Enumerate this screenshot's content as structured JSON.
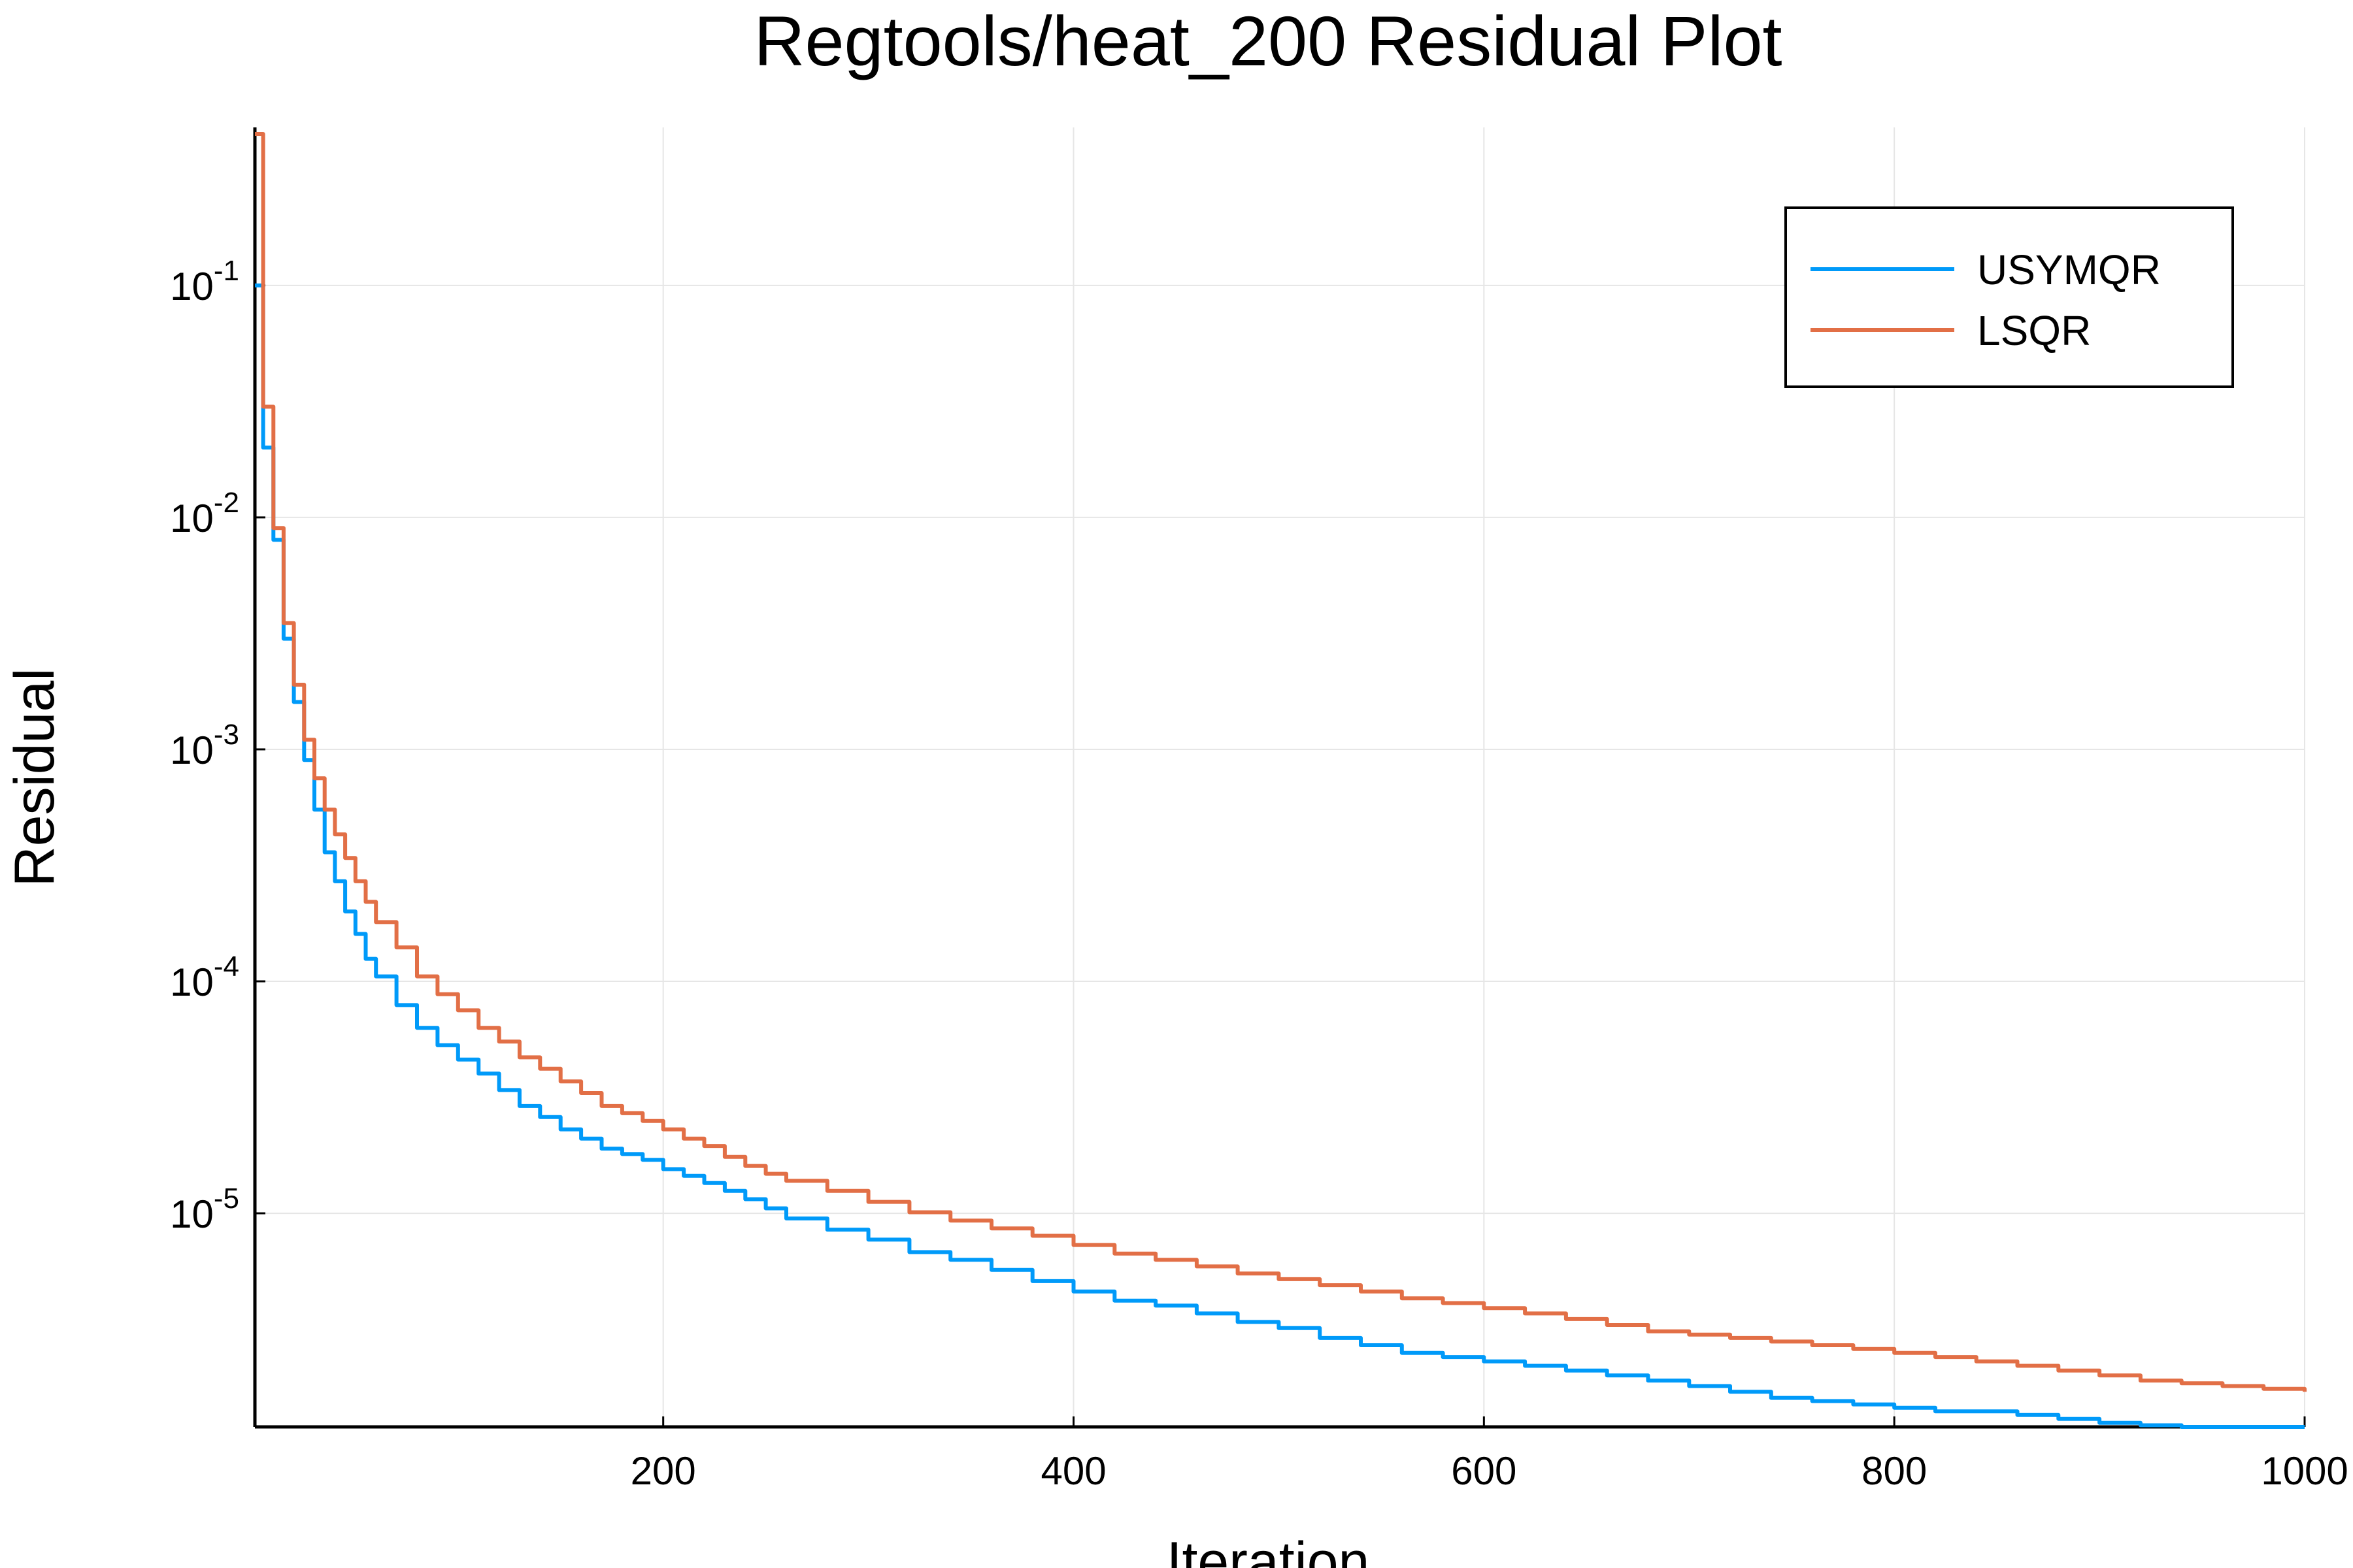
{
  "chart_data": {
    "type": "line",
    "title": "Regtools/heat_200 Residual Plot",
    "xlabel": "Iteration",
    "ylabel": "Residual",
    "xscale": "linear",
    "yscale": "log",
    "xlim": [
      1,
      1000
    ],
    "ylim": [
      1.2e-06,
      0.48
    ],
    "xticks": [
      200,
      400,
      600,
      800,
      1000
    ],
    "yticks": [
      {
        "value": 0.1,
        "base": "10",
        "exp": "-1"
      },
      {
        "value": 0.01,
        "base": "10",
        "exp": "-2"
      },
      {
        "value": 0.001,
        "base": "10",
        "exp": "-3"
      },
      {
        "value": 0.0001,
        "base": "10",
        "exp": "-4"
      },
      {
        "value": 1e-05,
        "base": "10",
        "exp": "-5"
      }
    ],
    "grid": true,
    "legend_position": "top-right",
    "series": [
      {
        "name": "USYMQR",
        "color": "#009af9",
        "x": [
          1,
          5,
          10,
          15,
          20,
          25,
          30,
          35,
          40,
          45,
          50,
          55,
          60,
          70,
          80,
          90,
          100,
          110,
          120,
          130,
          140,
          150,
          160,
          170,
          180,
          190,
          200,
          210,
          220,
          230,
          240,
          250,
          260,
          280,
          300,
          320,
          340,
          360,
          380,
          400,
          420,
          440,
          460,
          480,
          500,
          520,
          540,
          560,
          580,
          600,
          620,
          640,
          660,
          680,
          700,
          720,
          740,
          760,
          780,
          800,
          820,
          840,
          860,
          880,
          900,
          920,
          940,
          960,
          980,
          1000
        ],
        "y": [
          0.1,
          0.02,
          0.008,
          0.003,
          0.0016,
          0.0009,
          0.00055,
          0.00036,
          0.00027,
          0.0002,
          0.00016,
          0.000125,
          0.000105,
          7.9e-05,
          6.3e-05,
          5.3e-05,
          4.6e-05,
          4e-05,
          3.4e-05,
          2.9e-05,
          2.6e-05,
          2.3e-05,
          2.1e-05,
          1.9e-05,
          1.8e-05,
          1.7e-05,
          1.55e-05,
          1.45e-05,
          1.35e-05,
          1.25e-05,
          1.15e-05,
          1.05e-05,
          9.5e-06,
          8.5e-06,
          7.7e-06,
          6.8e-06,
          6.3e-06,
          5.7e-06,
          5.1e-06,
          4.6e-06,
          4.2e-06,
          4e-06,
          3.7e-06,
          3.4e-06,
          3.2e-06,
          2.9e-06,
          2.7e-06,
          2.5e-06,
          2.4e-06,
          2.3e-06,
          2.2e-06,
          2.1e-06,
          2e-06,
          1.9e-06,
          1.8e-06,
          1.7e-06,
          1.6e-06,
          1.55e-06,
          1.5e-06,
          1.45e-06,
          1.4e-06,
          1.4e-06,
          1.35e-06,
          1.3e-06,
          1.25e-06,
          1.22e-06,
          1.2e-06,
          1.2e-06,
          1.2e-06,
          1.2e-06
        ]
      },
      {
        "name": "LSQR",
        "color": "#e26f46",
        "x": [
          1,
          5,
          10,
          15,
          20,
          25,
          30,
          35,
          40,
          45,
          50,
          55,
          60,
          70,
          80,
          90,
          100,
          110,
          120,
          130,
          140,
          150,
          160,
          170,
          180,
          190,
          200,
          210,
          220,
          230,
          240,
          250,
          260,
          280,
          300,
          320,
          340,
          360,
          380,
          400,
          420,
          440,
          460,
          480,
          500,
          520,
          540,
          560,
          580,
          600,
          620,
          640,
          660,
          680,
          700,
          720,
          740,
          760,
          780,
          800,
          820,
          840,
          860,
          880,
          900,
          920,
          940,
          960,
          980,
          1000
        ],
        "y": [
          0.45,
          0.03,
          0.009,
          0.0035,
          0.0019,
          0.0011,
          0.00075,
          0.00055,
          0.00043,
          0.00034,
          0.00027,
          0.00022,
          0.00018,
          0.00014,
          0.000105,
          8.8e-05,
          7.5e-05,
          6.3e-05,
          5.5e-05,
          4.7e-05,
          4.2e-05,
          3.7e-05,
          3.3e-05,
          2.9e-05,
          2.7e-05,
          2.5e-05,
          2.3e-05,
          2.1e-05,
          1.95e-05,
          1.75e-05,
          1.6e-05,
          1.48e-05,
          1.38e-05,
          1.25e-05,
          1.12e-05,
          1.01e-05,
          9.3e-06,
          8.6e-06,
          8e-06,
          7.3e-06,
          6.7e-06,
          6.3e-06,
          5.9e-06,
          5.5e-06,
          5.2e-06,
          4.9e-06,
          4.6e-06,
          4.3e-06,
          4.1e-06,
          3.9e-06,
          3.7e-06,
          3.5e-06,
          3.3e-06,
          3.1e-06,
          3e-06,
          2.9e-06,
          2.8e-06,
          2.7e-06,
          2.6e-06,
          2.5e-06,
          2.4e-06,
          2.3e-06,
          2.2e-06,
          2.1e-06,
          2e-06,
          1.9e-06,
          1.85e-06,
          1.8e-06,
          1.75e-06,
          1.7e-06
        ]
      }
    ]
  }
}
